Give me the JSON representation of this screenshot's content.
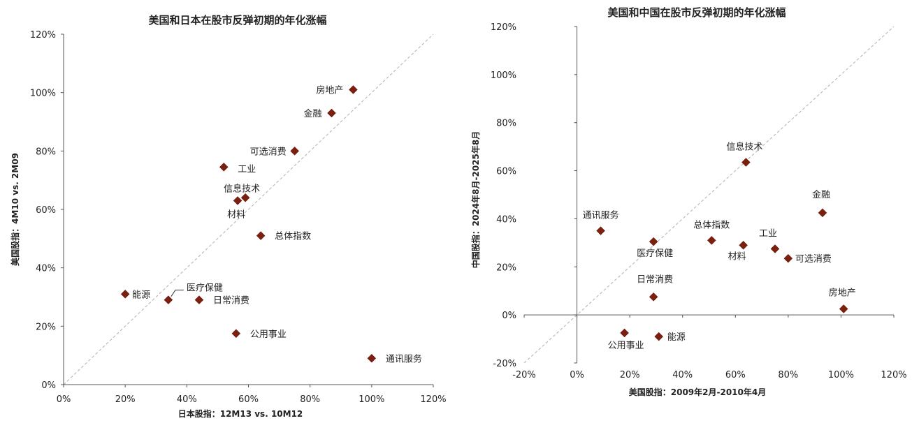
{
  "chart_data": [
    {
      "type": "scatter",
      "title": "美国和日本在股市反弹初期的年化涨幅",
      "xlabel": "日本股指：12M13 vs. 10M12",
      "ylabel": "美国股指：4M10 vs. 2M09",
      "xlim": [
        0,
        120
      ],
      "ylim": [
        0,
        120
      ],
      "xticks": [
        "0%",
        "20%",
        "40%",
        "60%",
        "80%",
        "100%",
        "120%"
      ],
      "yticks": [
        "0%",
        "20%",
        "40%",
        "60%",
        "80%",
        "100%",
        "120%"
      ],
      "diagonal": true,
      "marker_color": "#7b1f0f",
      "points": [
        {
          "label": "房地产",
          "x": 94,
          "y": 101
        },
        {
          "label": "金融",
          "x": 87,
          "y": 93
        },
        {
          "label": "可选消费",
          "x": 75,
          "y": 80
        },
        {
          "label": "工业",
          "x": 52,
          "y": 74.5
        },
        {
          "label": "信息技术",
          "x": 59,
          "y": 64
        },
        {
          "label": "材料",
          "x": 56.5,
          "y": 63
        },
        {
          "label": "总体指数",
          "x": 64,
          "y": 51
        },
        {
          "label": "能源",
          "x": 20,
          "y": 31
        },
        {
          "label": "医疗保健",
          "x": 34,
          "y": 29
        },
        {
          "label": "日常消费",
          "x": 44,
          "y": 29
        },
        {
          "label": "公用事业",
          "x": 56,
          "y": 17.5
        },
        {
          "label": "通讯服务",
          "x": 100,
          "y": 9
        }
      ]
    },
    {
      "type": "scatter",
      "title": "美国和中国在股市反弹初期的年化涨幅",
      "xlabel": "美国股指：2009年2月-2010年4月",
      "ylabel": "中国股指：2024年8月-2025年8月",
      "xlim": [
        -20,
        120
      ],
      "ylim": [
        -20,
        120
      ],
      "xticks": [
        "-20%",
        "0%",
        "20%",
        "40%",
        "60%",
        "80%",
        "100%",
        "120%"
      ],
      "yticks": [
        "-20%",
        "0%",
        "20%",
        "40%",
        "60%",
        "80%",
        "100%",
        "120%"
      ],
      "diagonal": true,
      "marker_color": "#7b1f0f",
      "points": [
        {
          "label": "信息技术",
          "x": 64,
          "y": 63.5
        },
        {
          "label": "金融",
          "x": 93,
          "y": 42.5
        },
        {
          "label": "通讯服务",
          "x": 9,
          "y": 35
        },
        {
          "label": "医疗保健",
          "x": 29,
          "y": 30.5
        },
        {
          "label": "总体指数",
          "x": 51,
          "y": 31
        },
        {
          "label": "材料",
          "x": 63,
          "y": 29
        },
        {
          "label": "工业",
          "x": 75,
          "y": 27.5
        },
        {
          "label": "可选消费",
          "x": 80,
          "y": 23.5
        },
        {
          "label": "日常消费",
          "x": 29,
          "y": 7.5
        },
        {
          "label": "房地产",
          "x": 101,
          "y": 2.5
        },
        {
          "label": "公用事业",
          "x": 18,
          "y": -7.5
        },
        {
          "label": "能源",
          "x": 31,
          "y": -9
        }
      ]
    }
  ]
}
